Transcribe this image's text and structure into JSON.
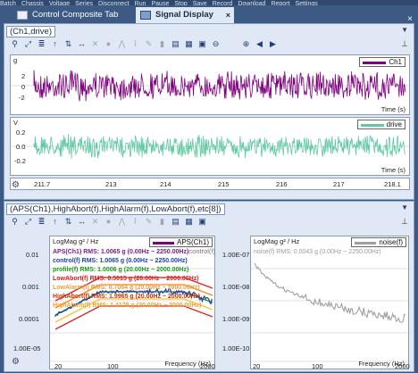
{
  "top_menu": [
    "Batch",
    "Chassis",
    "Voltage",
    "Series",
    "Disconnect",
    "Run",
    "Pause",
    "Stop",
    "Save",
    "Record",
    "Download",
    "Report",
    "Settings"
  ],
  "tabs": [
    {
      "label": "Control Composite Tab",
      "close": "×"
    },
    {
      "label": "Signal Display",
      "close": "×"
    }
  ],
  "window_close": "×",
  "panel1": {
    "title": "(Ch1,drive)",
    "dropdown": "▼",
    "pin": "⊥",
    "chart1": {
      "corner_label": "g",
      "legend": "Ch1",
      "y_ticks": [
        "2",
        "0",
        "-2"
      ],
      "x_label": "Time (s)",
      "color": "#800080"
    },
    "chart2": {
      "corner_label": "V",
      "legend": "drive",
      "y_ticks": [
        "0.2",
        "0.0",
        "-0.2"
      ],
      "x_label": "Time (s)",
      "color": "#5fc9a2"
    },
    "x_ticks": [
      "211.7",
      "213",
      "214",
      "215",
      "216",
      "217",
      "218.1"
    ]
  },
  "panel2": {
    "title": "(APS(Ch1),HighAbort(f),HighAlarm(f),LowAbort(f),etc[8])",
    "dropdown": "▼",
    "pin": "⊥",
    "left_chart": {
      "corner_label": "LogMag g² / Hz",
      "legend": "APS(Ch1)",
      "legend2": "control(f)",
      "y_ticks": [
        "0.01",
        "0.001",
        "0.0001",
        "1.00E-05"
      ],
      "x_ticks": [
        "20",
        "100",
        "2000"
      ],
      "x_label": "Frequency (Hz)",
      "rms_lines": [
        {
          "text": "APS(Ch1) RMS: 1.0065 g (0.00Hz ~ 2250.00Hz)",
          "color": "#7a1f8a"
        },
        {
          "text": "control(f) RMS: 1.0065 g (0.00Hz ~ 2250.00Hz)",
          "color": "#1f3fae"
        },
        {
          "text": "profile(f) RMS: 1.0006 g (20.00Hz ~ 2000.00Hz)",
          "color": "#1a9a1a"
        },
        {
          "text": "LowAbort(f) RMS: 0.5015 g (20.00Hz ~ 2000.00Hz)",
          "color": "#d32020"
        },
        {
          "text": "LowAlarm(f) RMS: 0.7084 g (20.00Hz ~ 2000.00Hz)",
          "color": "#e8a040"
        },
        {
          "text": "HighAbort(f) RMS: 1.9965 g (20.00Hz ~ 2000.00Hz)",
          "color": "#cc3300"
        },
        {
          "text": "HighAlarm(f) RMS: 1.4178 g (20.00Hz ~ 2000.00Hz)",
          "color": "#f0a030"
        }
      ]
    },
    "right_chart": {
      "corner_label": "LogMag g² / Hz",
      "legend": "noise(f)",
      "y_ticks": [
        "1.00E-07",
        "1.00E-08",
        "1.00E-09",
        "1.00E-10"
      ],
      "x_ticks": [
        "20",
        "100",
        "2000"
      ],
      "x_label": "Frequency (Hz)",
      "rms_line": "noise(f) RMS: 0.0043 g (0.00Hz ~ 2250.00Hz)",
      "color": "#a0a0a0"
    }
  },
  "colors": {
    "purple": "#800080",
    "teal": "#5fc9a2",
    "blue": "#1f3fae",
    "red": "#e02020",
    "orange": "#f08a20",
    "yellow": "#f2c23a",
    "green": "#1a9a1a",
    "gray": "#a0a0a0"
  }
}
